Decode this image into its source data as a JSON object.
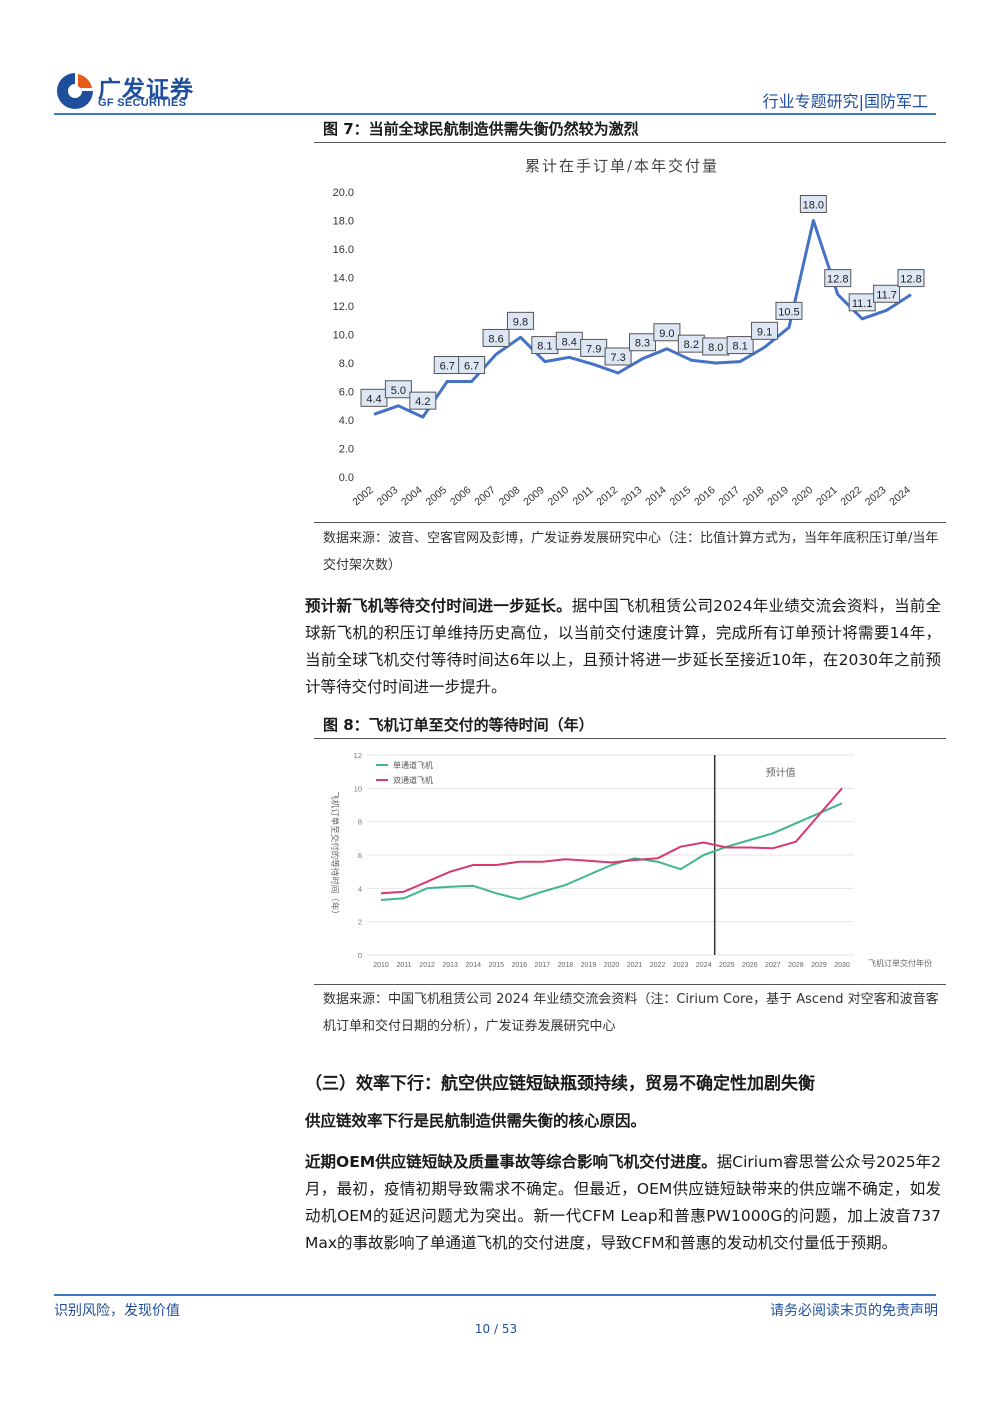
{
  "header": {
    "logo_cn": "广发证券",
    "logo_en": "GF SECURITIES",
    "section": "行业专题研究|国防军工"
  },
  "figure7": {
    "caption": "图 7：当前全球民航制造供需失衡仍然较为激烈",
    "source": "数据来源：波音、空客官网及彭博，广发证券发展研究中心（注：比值计算方式为，当年年底积压订单/当年交付架次数）"
  },
  "paragraph1": {
    "lead": "预计新飞机等待交付时间进一步延长。",
    "body": "据中国飞机租赁公司2024年业绩交流会资料，当前全球新飞机的积压订单维持历史高位，以当前交付速度计算，完成所有订单预计将需要14年，当前全球飞机交付等待时间达6年以上，且预计将进一步延长至接近10年，在2030年之前预计等待交付时间进一步提升。"
  },
  "figure8": {
    "caption": "图 8：飞机订单至交付的等待时间（年）",
    "source": "数据来源：中国飞机租赁公司 2024 年业绩交流会资料（注：Cirium Core，基于 Ascend 对空客和波音客机订单和交付日期的分析），广发证券发展研究中心"
  },
  "section3": {
    "heading": "（三）效率下行：航空供应链短缺瓶颈持续，贸易不确定性加剧失衡"
  },
  "paragraph2": {
    "lead": "供应链效率下行是民航制造供需失衡的核心原因。"
  },
  "paragraph3": {
    "lead": "近期OEM供应链短缺及质量事故等综合影响飞机交付进度。",
    "body": "据Cirium睿思誉公众号2025年2月，最初，疫情初期导致需求不确定。但最近，OEM供应链短缺带来的供应端不确定，如发动机OEM的延迟问题尤为突出。新一代CFM Leap和普惠PW1000G的问题，加上波音737 Max的事故影响了单通道飞机的交付进度，导致CFM和普惠的发动机交付量低于预期。"
  },
  "footer": {
    "left": "识别风险，发现价值",
    "right": "请务必阅读末页的免责声明",
    "page": "10 / 53"
  },
  "chart_data": [
    {
      "type": "line",
      "title": "累计在手订单/本年交付量",
      "x": [
        "2002",
        "2003",
        "2004",
        "2005",
        "2006",
        "2007",
        "2008",
        "2009",
        "2010",
        "2011",
        "2012",
        "2013",
        "2014",
        "2015",
        "2016",
        "2017",
        "2018",
        "2019",
        "2020",
        "2021",
        "2022",
        "2023",
        "2024"
      ],
      "series": [
        {
          "values": [
            4.4,
            5.0,
            4.2,
            6.7,
            6.7,
            8.6,
            9.8,
            8.1,
            8.4,
            7.9,
            7.3,
            8.3,
            9.0,
            8.2,
            8.0,
            8.1,
            9.1,
            10.5,
            18.0,
            12.8,
            11.1,
            11.7,
            12.8
          ]
        }
      ],
      "yticks": [
        "0.0",
        "2.0",
        "4.0",
        "6.0",
        "8.0",
        "10.0",
        "12.0",
        "14.0",
        "16.0",
        "18.0",
        "20.0"
      ],
      "ylim": [
        0,
        20
      ],
      "line_color": "#4472c4",
      "label_fill": "#dce6f4",
      "grid": false
    },
    {
      "type": "line",
      "x": [
        "2010",
        "2011",
        "2012",
        "2013",
        "2014",
        "2015",
        "2016",
        "2017",
        "2018",
        "2019",
        "2020",
        "2021",
        "2022",
        "2023",
        "2024",
        "2025",
        "2026",
        "2027",
        "2028",
        "2029",
        "2030"
      ],
      "series": [
        {
          "name": "单通道飞机",
          "color": "#3fb68e",
          "values": [
            3.3,
            3.4,
            4.0,
            4.1,
            4.15,
            3.7,
            3.35,
            3.8,
            4.2,
            4.8,
            5.4,
            5.8,
            5.6,
            5.15,
            6.0,
            6.5,
            6.9,
            7.3,
            7.9,
            8.5,
            9.1
          ]
        },
        {
          "name": "双通道飞机",
          "color": "#d83a6b",
          "values": [
            3.7,
            3.8,
            4.4,
            5.0,
            5.4,
            5.4,
            5.6,
            5.6,
            5.75,
            5.65,
            5.55,
            5.7,
            5.8,
            6.5,
            6.75,
            6.45,
            6.45,
            6.4,
            6.8,
            8.4,
            10.0
          ]
        }
      ],
      "yticks": [
        "0",
        "2",
        "4",
        "6",
        "8",
        "10",
        "12"
      ],
      "ylim": [
        0,
        12
      ],
      "ylabel": "飞机订单至交付的等待时间（年）",
      "xlabel": "飞机订单交付年份",
      "annotation": "预计值",
      "divider_x": "2024",
      "grid": true,
      "legend": "top-left"
    }
  ]
}
